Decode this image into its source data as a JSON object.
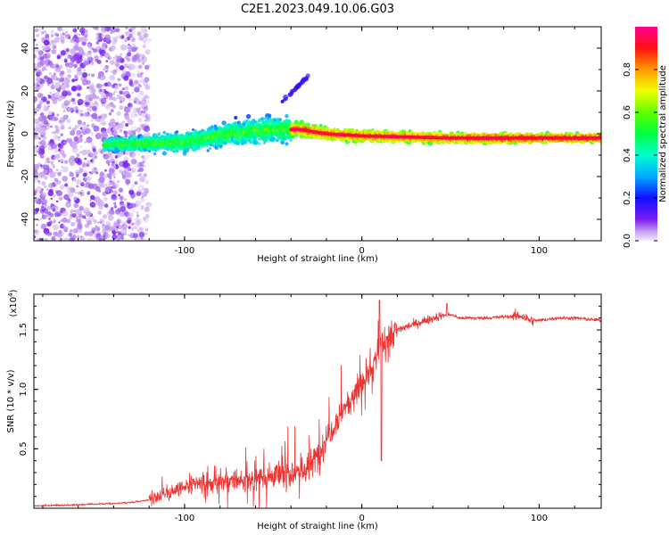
{
  "title": "C2E1.2023.049.10.06.G03",
  "colors": {
    "snr_line": "#ee3333",
    "axis": "#000000",
    "background": "#ffffff"
  },
  "chart_data": [
    {
      "type": "heatmap",
      "name": "spectrogram",
      "xlabel": "Height of straight line (km)",
      "ylabel": "Frequency (Hz)",
      "xlim": [
        -185,
        135
      ],
      "ylim": [
        -50,
        50
      ],
      "xticks": [
        -100,
        0,
        100
      ],
      "xtick_labels": [
        "-100",
        "0",
        "100"
      ],
      "yticks": [
        -40,
        -20,
        0,
        20,
        40
      ],
      "ytick_labels": [
        "-40",
        "-20",
        "0",
        "20",
        "40"
      ],
      "colorbar": {
        "label": "Normalized spectral amplitude",
        "range": [
          0,
          1
        ],
        "ticks": [
          0.0,
          0.2,
          0.4,
          0.6,
          0.8
        ],
        "tick_labels": [
          "0.0",
          "0.2",
          "0.4",
          "0.6",
          "0.8"
        ],
        "colormap": "hsv-rainbow"
      },
      "description_points": {
        "noise_region_x": [
          -185,
          -120
        ],
        "band_start_x": -145,
        "band_center_freq": [
          [
            -145,
            -5
          ],
          [
            -100,
            -4
          ],
          [
            -75,
            0
          ],
          [
            -50,
            2
          ],
          [
            -35,
            2
          ],
          [
            -20,
            0
          ],
          [
            0,
            -1
          ],
          [
            50,
            -2
          ],
          [
            100,
            -2
          ],
          [
            135,
            -2
          ]
        ],
        "strong_band_x": [
          -40,
          135
        ],
        "meteor_streak": [
          [
            -45,
            15
          ],
          [
            -30,
            27
          ]
        ]
      }
    },
    {
      "type": "line",
      "name": "snr",
      "xlabel": "Height of straight line (km)",
      "ylabel": "SNR (10 * v/v)",
      "multiplier_label": "(x10",
      "multiplier_exp": "4",
      "multiplier_close": ")",
      "xlim": [
        -185,
        135
      ],
      "ylim": [
        0,
        1.8
      ],
      "xticks": [
        -100,
        0,
        100
      ],
      "xtick_labels": [
        "-100",
        "0",
        "100"
      ],
      "yticks": [
        0.5,
        1.0,
        1.5
      ],
      "ytick_labels": [
        "0.5",
        "1.0",
        "1.5"
      ],
      "series": [
        {
          "name": "SNR (x10^4)",
          "x": [
            -185,
            -160,
            -140,
            -130,
            -120,
            -110,
            -100,
            -90,
            -80,
            -70,
            -60,
            -50,
            -40,
            -30,
            -25,
            -20,
            -15,
            -10,
            -5,
            0,
            5,
            10,
            15,
            20,
            30,
            40,
            45,
            50,
            55,
            60,
            70,
            80,
            90,
            95,
            100,
            110,
            120,
            135
          ],
          "y": [
            0.02,
            0.03,
            0.04,
            0.05,
            0.07,
            0.13,
            0.17,
            0.2,
            0.22,
            0.23,
            0.25,
            0.27,
            0.3,
            0.33,
            0.45,
            0.6,
            0.72,
            0.85,
            0.95,
            1.05,
            1.15,
            1.35,
            1.45,
            1.5,
            1.55,
            1.6,
            1.62,
            1.63,
            1.6,
            1.6,
            1.6,
            1.61,
            1.62,
            1.58,
            1.58,
            1.6,
            1.6,
            1.58
          ]
        }
      ]
    }
  ]
}
